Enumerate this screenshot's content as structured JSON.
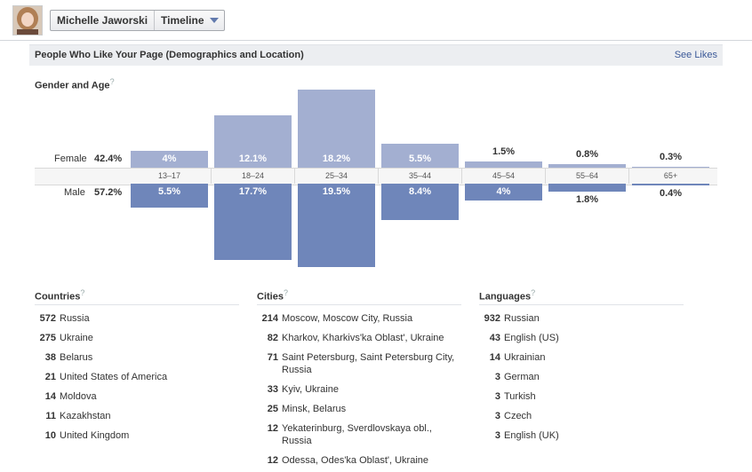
{
  "header": {
    "page_name": "Michelle Jaworski",
    "view": "Timeline",
    "avatar_icon": "profile-photo"
  },
  "section": {
    "title": "People Who Like Your Page (Demographics and Location)",
    "see_likes": "See Likes"
  },
  "gender_age": {
    "title": "Gender and Age",
    "help": "?",
    "female_label": "Female",
    "female_pct": "42.4%",
    "male_label": "Male",
    "male_pct": "57.2%",
    "groups": [
      {
        "age": "13-17",
        "female": 4.0,
        "female_label": "4%",
        "male": 5.5,
        "male_label": "5.5%"
      },
      {
        "age": "18-24",
        "female": 12.1,
        "female_label": "12.1%",
        "male": 17.7,
        "male_label": "17.7%"
      },
      {
        "age": "25-34",
        "female": 18.2,
        "female_label": "18.2%",
        "male": 19.5,
        "male_label": "19.5%"
      },
      {
        "age": "35-44",
        "female": 5.5,
        "female_label": "5.5%",
        "male": 8.4,
        "male_label": "8.4%"
      },
      {
        "age": "45-54",
        "female": 1.5,
        "female_label": "1.5%",
        "male": 4.0,
        "male_label": "4%"
      },
      {
        "age": "55-64",
        "female": 0.8,
        "female_label": "0.8%",
        "male": 1.8,
        "male_label": "1.8%"
      },
      {
        "age": "65+",
        "female": 0.3,
        "female_label": "0.3%",
        "male": 0.4,
        "male_label": "0.4%"
      }
    ],
    "colors": {
      "female": "#a3afd1",
      "male": "#6f86ba"
    }
  },
  "countries": {
    "title": "Countries",
    "help": "?",
    "items": [
      {
        "count": "572",
        "name": "Russia"
      },
      {
        "count": "275",
        "name": "Ukraine"
      },
      {
        "count": "38",
        "name": "Belarus"
      },
      {
        "count": "21",
        "name": "United States of America"
      },
      {
        "count": "14",
        "name": "Moldova"
      },
      {
        "count": "11",
        "name": "Kazakhstan"
      },
      {
        "count": "10",
        "name": "United Kingdom"
      }
    ]
  },
  "cities": {
    "title": "Cities",
    "help": "?",
    "items": [
      {
        "count": "214",
        "name": "Moscow, Moscow City, Russia"
      },
      {
        "count": "82",
        "name": "Kharkov, Kharkivs'ka Oblast', Ukraine"
      },
      {
        "count": "71",
        "name": "Saint Petersburg, Saint Petersburg City, Russia"
      },
      {
        "count": "33",
        "name": "Kyiv, Ukraine"
      },
      {
        "count": "25",
        "name": "Minsk, Belarus"
      },
      {
        "count": "12",
        "name": "Yekaterinburg, Sverdlovskaya obl., Russia"
      },
      {
        "count": "12",
        "name": "Odessa, Odes'ka Oblast', Ukraine"
      }
    ]
  },
  "languages": {
    "title": "Languages",
    "help": "?",
    "items": [
      {
        "count": "932",
        "name": "Russian"
      },
      {
        "count": "43",
        "name": "English (US)"
      },
      {
        "count": "14",
        "name": "Ukrainian"
      },
      {
        "count": "3",
        "name": "German"
      },
      {
        "count": "3",
        "name": "Turkish"
      },
      {
        "count": "3",
        "name": "Czech"
      },
      {
        "count": "3",
        "name": "English (UK)"
      }
    ]
  }
}
